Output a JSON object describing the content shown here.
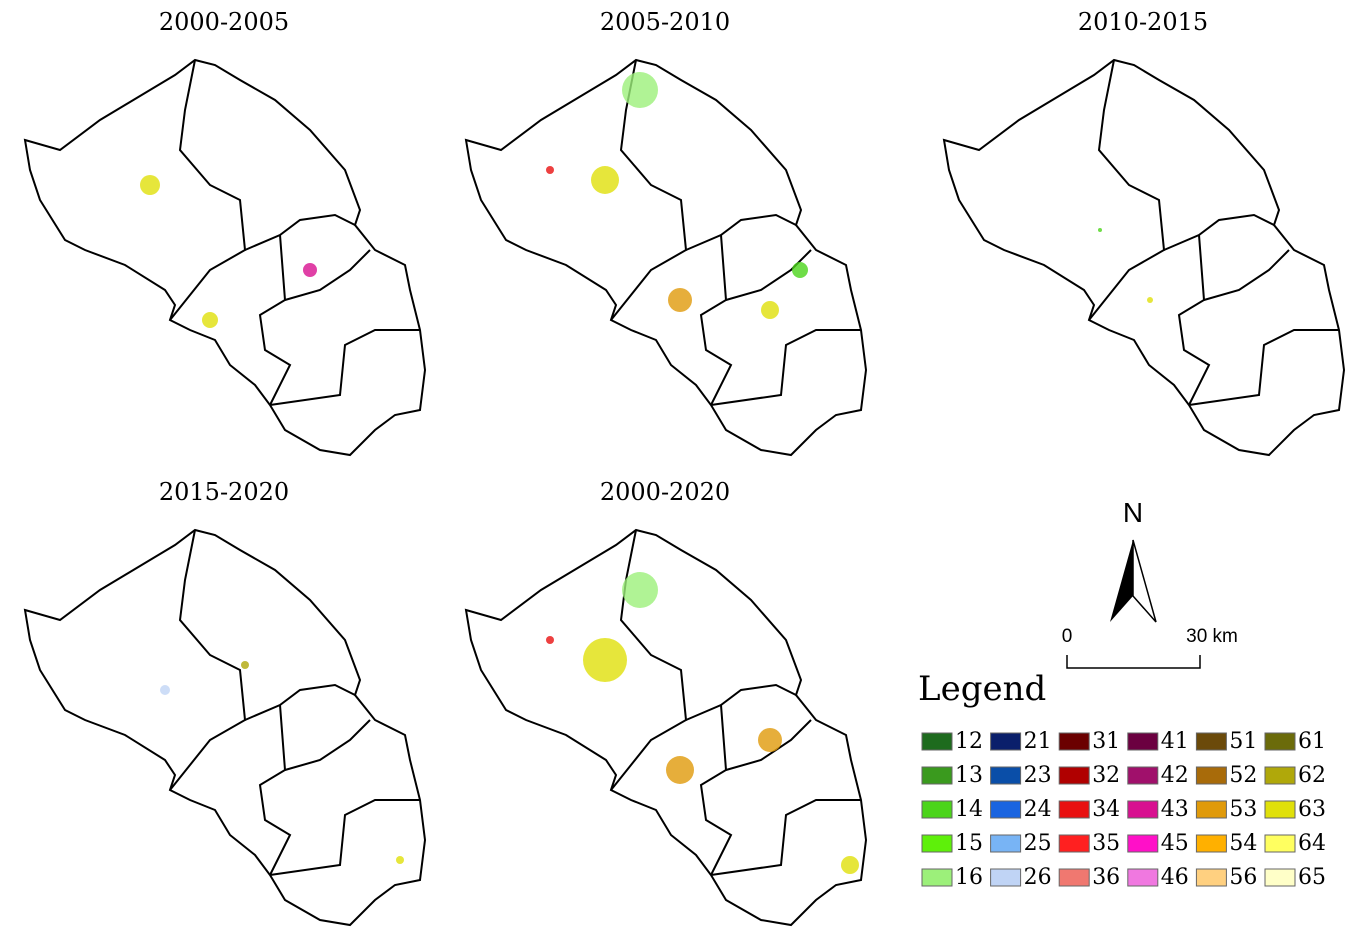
{
  "panels": [
    {
      "title": "2000-2005"
    },
    {
      "title": "2005-2010"
    },
    {
      "title": "2010-2015"
    },
    {
      "title": "2015-2020"
    },
    {
      "title": "2000-2020"
    }
  ],
  "north": "N",
  "scale": {
    "start": "0",
    "end": "30 km"
  },
  "legend": {
    "title": "Legend",
    "items": [
      {
        "label": "12",
        "color": "#1e6b1e"
      },
      {
        "label": "13",
        "color": "#3a9a1e"
      },
      {
        "label": "14",
        "color": "#4bd41a"
      },
      {
        "label": "15",
        "color": "#5ef00a"
      },
      {
        "label": "16",
        "color": "#9cf07a"
      },
      {
        "label": "21",
        "color": "#0a1f6b"
      },
      {
        "label": "23",
        "color": "#0a4ea8"
      },
      {
        "label": "24",
        "color": "#1a64e0"
      },
      {
        "label": "25",
        "color": "#78b4f5"
      },
      {
        "label": "26",
        "color": "#c0d4f5"
      },
      {
        "label": "31",
        "color": "#6b0000"
      },
      {
        "label": "32",
        "color": "#b00000"
      },
      {
        "label": "34",
        "color": "#e81010"
      },
      {
        "label": "35",
        "color": "#ff2020"
      },
      {
        "label": "36",
        "color": "#f07870"
      },
      {
        "label": "41",
        "color": "#6b0040"
      },
      {
        "label": "42",
        "color": "#a0106b"
      },
      {
        "label": "43",
        "color": "#d81090"
      },
      {
        "label": "45",
        "color": "#ff10c8"
      },
      {
        "label": "46",
        "color": "#f078e0"
      },
      {
        "label": "51",
        "color": "#6b4a0a"
      },
      {
        "label": "52",
        "color": "#a86b0a"
      },
      {
        "label": "53",
        "color": "#e09a0a"
      },
      {
        "label": "54",
        "color": "#ffb000"
      },
      {
        "label": "56",
        "color": "#ffd080"
      },
      {
        "label": "61",
        "color": "#6b6b0a"
      },
      {
        "label": "62",
        "color": "#b0a80a"
      },
      {
        "label": "63",
        "color": "#e0e00a"
      },
      {
        "label": "64",
        "color": "#ffff60"
      },
      {
        "label": "65",
        "color": "#ffffc8"
      }
    ]
  }
}
